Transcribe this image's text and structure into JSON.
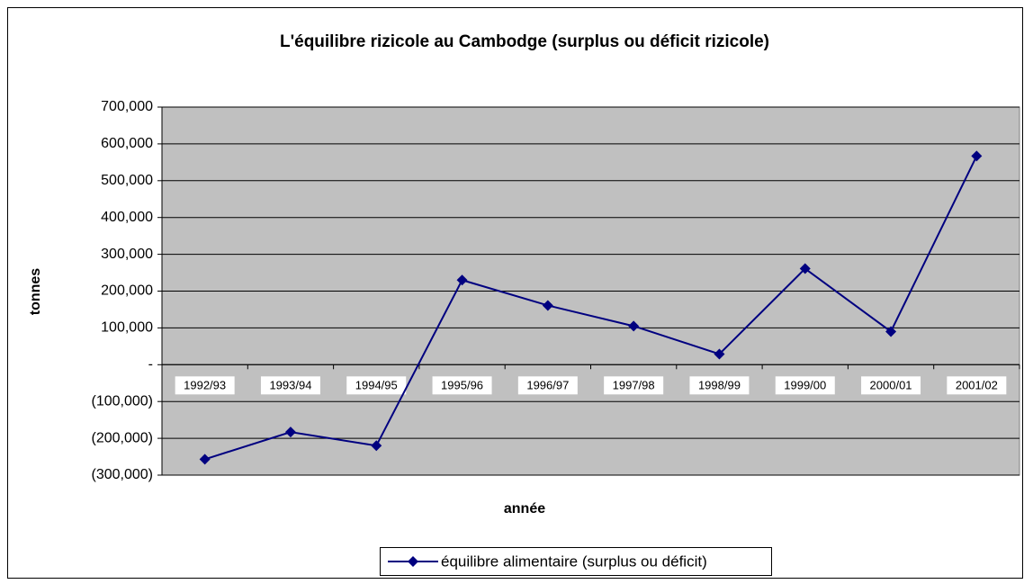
{
  "chart_data": {
    "type": "line",
    "title": "L'équilibre rizicole au Cambodge (surplus ou déficit rizicole)",
    "xlabel": "année",
    "ylabel": "tonnes",
    "categories": [
      "1992/93",
      "1993/94",
      "1994/95",
      "1995/96",
      "1996/97",
      "1997/98",
      "1998/99",
      "1999/00",
      "2000/01",
      "2001/02"
    ],
    "series": [
      {
        "name": "équilibre alimentaire (surplus ou déficit)",
        "color": "#000080",
        "values": [
          -257000,
          -183000,
          -220000,
          230000,
          161000,
          105000,
          29000,
          261000,
          90000,
          567000
        ]
      }
    ],
    "ylim": [
      -300000,
      700000
    ],
    "yticks": [
      {
        "value": -300000,
        "label": "(300,000)"
      },
      {
        "value": -200000,
        "label": "(200,000)"
      },
      {
        "value": -100000,
        "label": "(100,000)"
      },
      {
        "value": 0,
        "label": "-"
      },
      {
        "value": 100000,
        "label": "100,000"
      },
      {
        "value": 200000,
        "label": "200,000"
      },
      {
        "value": 300000,
        "label": "300,000"
      },
      {
        "value": 400000,
        "label": "400,000"
      },
      {
        "value": 500000,
        "label": "500,000"
      },
      {
        "value": 600000,
        "label": "600,000"
      },
      {
        "value": 700000,
        "label": "700,000"
      }
    ],
    "grid": true,
    "legend": "bottom"
  }
}
